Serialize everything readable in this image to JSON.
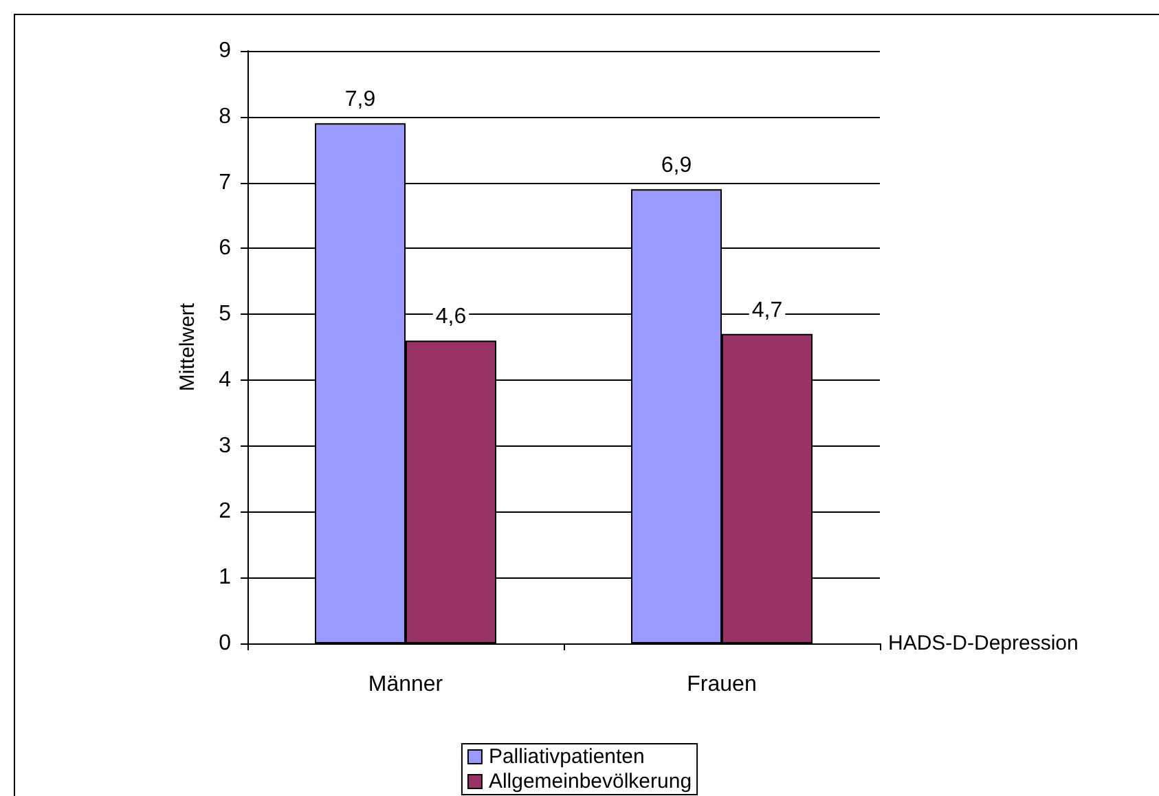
{
  "chart_data": {
    "type": "bar",
    "ylabel": "Mittelwert",
    "xlabel": "HADS-D-Depression",
    "categories": [
      "Männer",
      "Frauen"
    ],
    "series": [
      {
        "name": "Palliativpatienten",
        "color": "#9999ff",
        "values": [
          7.9,
          6.9
        ],
        "value_labels": [
          "7,9",
          "6,9"
        ]
      },
      {
        "name": "Allgemeinbevölkerung",
        "color": "#993366",
        "values": [
          4.6,
          4.7
        ],
        "value_labels": [
          "4,6",
          "4,7"
        ]
      }
    ],
    "ylim": [
      0,
      9
    ],
    "yticks": [
      0,
      1,
      2,
      3,
      4,
      5,
      6,
      7,
      8,
      9
    ],
    "grid": "y",
    "legend": "bottom"
  }
}
